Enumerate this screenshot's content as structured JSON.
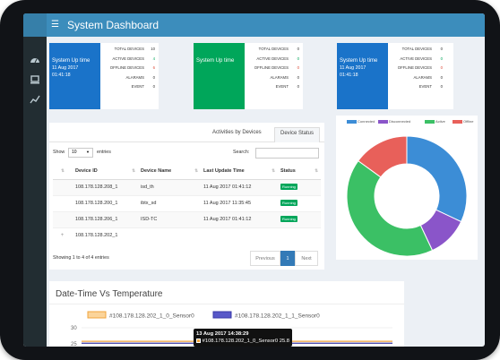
{
  "header": {
    "title": "System Dashboard"
  },
  "sidebar": {
    "icons": [
      "dashboard-icon",
      "devices-icon",
      "chart-icon"
    ]
  },
  "stat_cards": [
    {
      "color": "#1a73c9",
      "title": "System Up time",
      "date": "11 Aug 2017",
      "time": "01:41:18",
      "rows": [
        {
          "label": "TOTAL DEVICES",
          "value": "10",
          "color": "#333333"
        },
        {
          "label": "ACTIVE DEVICES",
          "value": "4",
          "color": "#00a65a"
        },
        {
          "label": "OFFLINE DEVICES",
          "value": "6",
          "color": "#dd4b39"
        },
        {
          "label": "ALARAMS",
          "value": "0",
          "color": "#333333"
        },
        {
          "label": "EVENT",
          "value": "0",
          "color": "#333333"
        }
      ]
    },
    {
      "color": "#00a65a",
      "title": "System Up time",
      "date": "",
      "time": "",
      "rows": [
        {
          "label": "TOTAL DEVICES",
          "value": "0",
          "color": "#333333"
        },
        {
          "label": "ACTIVE DEVICES",
          "value": "0",
          "color": "#00a65a"
        },
        {
          "label": "OFFLINE DEVICES",
          "value": "0",
          "color": "#dd4b39"
        },
        {
          "label": "ALARAMS",
          "value": "0",
          "color": "#333333"
        },
        {
          "label": "EVENT",
          "value": "0",
          "color": "#333333"
        }
      ]
    },
    {
      "color": "#1a73c9",
      "title": "System Up time",
      "date": "11 Aug 2017",
      "time": "01:41:18",
      "rows": [
        {
          "label": "TOTAL DEVICES",
          "value": "0",
          "color": "#333333"
        },
        {
          "label": "ACTIVE DEVICES",
          "value": "0",
          "color": "#00a65a"
        },
        {
          "label": "OFFLINE DEVICES",
          "value": "0",
          "color": "#dd4b39"
        },
        {
          "label": "ALARAMS",
          "value": "0",
          "color": "#333333"
        },
        {
          "label": "EVENT",
          "value": "0",
          "color": "#333333"
        }
      ]
    }
  ],
  "device_panel": {
    "tabs": [
      "Activities by Devices",
      "Device Status"
    ],
    "active_tab": 1,
    "show_label": "Show",
    "entries_value": "10",
    "entries_label": "entries",
    "search_label": "Search:",
    "search_value": "",
    "columns": [
      "Device ID",
      "Device Name",
      "Last Update Time",
      "Status"
    ],
    "rows": [
      {
        "id": "108.178.128.208_1",
        "name": "isd_th",
        "time": "11 Aug 2017 01:41:12",
        "status": "Running"
      },
      {
        "id": "108.178.128.200_1",
        "name": "ibtx_sd",
        "time": "11 Aug 2017 11:35:45",
        "status": "Running"
      },
      {
        "id": "108.178.128.206_1",
        "name": "ISD-TC",
        "time": "11 Aug 2017 01:41:12",
        "status": "Running"
      },
      {
        "id": "108.178.128.202_1",
        "name": "",
        "time": "",
        "status": ""
      }
    ],
    "footer": "Showing 1 to 4 of 4 entries",
    "pager": {
      "previous": "Previous",
      "page": "1",
      "next": "Next"
    }
  },
  "chart_data": [
    {
      "type": "pie",
      "style": "donut",
      "legend_position": "top",
      "categories": [
        "Connected",
        "Disconnected",
        "Active",
        "Offline"
      ],
      "values": [
        32,
        11,
        42,
        15
      ],
      "colors": [
        "#3c8dd6",
        "#8a55c9",
        "#3bc065",
        "#e8605a"
      ]
    },
    {
      "type": "line",
      "title": "Date-Time Vs Temperature",
      "series": [
        {
          "name": "#108.178.128.202_1_0_Sensor0",
          "color": "#f0a43c",
          "values": [
            25.8,
            25.8
          ]
        },
        {
          "name": "#108.178.128.202_1_1_Sensor0",
          "color": "#3a3aa8",
          "values": [
            25.2,
            25.2
          ]
        }
      ],
      "y_ticks": [
        "30",
        "25"
      ],
      "tooltip": {
        "time": "13 Aug 2017 14:38:29",
        "series": "#108.178.128.202_1_0_Sensor0",
        "value": "25.8"
      }
    }
  ]
}
